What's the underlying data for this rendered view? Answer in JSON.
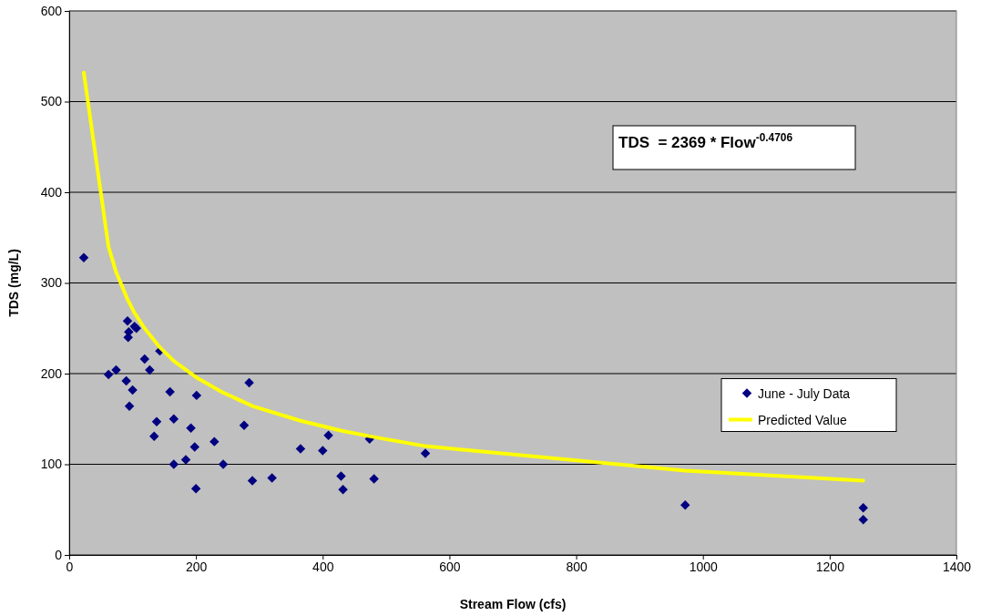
{
  "chart_data": {
    "type": "scatter",
    "xlabel": "Stream Flow (cfs)",
    "ylabel": "TDS (mg/L)",
    "xlim": [
      0,
      1400
    ],
    "xticks": [
      0,
      200,
      400,
      600,
      800,
      1000,
      1200,
      1400
    ],
    "ylim": [
      0,
      600
    ],
    "yticks": [
      0,
      100,
      200,
      300,
      400,
      500,
      600
    ],
    "grid": "y",
    "legend": "right",
    "annotations": [
      "TDS  = 2369 * Flow$^{-0.4706}$"
    ],
    "series": [
      {
        "name": "June - July Data",
        "color": "#000080",
        "marker": "diamond",
        "x": [
          23,
          92,
          103,
          106,
          94,
          93,
          62,
          74,
          90,
          100,
          95,
          119,
          127,
          143,
          159,
          201,
          284,
          138,
          165,
          192,
          134,
          198,
          229,
          276,
          165,
          184,
          243,
          200,
          289,
          320,
          365,
          400,
          409,
          474,
          562,
          429,
          432,
          481,
          972,
          1253,
          1253
        ],
        "values": [
          328,
          258,
          252,
          250,
          246,
          240,
          199,
          204,
          192,
          182,
          164,
          216,
          204,
          225,
          180,
          176,
          190,
          147,
          150,
          140,
          131,
          119,
          125,
          143,
          100,
          105,
          100,
          73,
          82,
          85,
          117,
          115,
          132,
          128,
          112,
          87,
          72,
          84,
          55,
          52,
          39
        ]
      },
      {
        "name": "Predicted Value",
        "type": "line",
        "color": "#ffff00",
        "marker": "none",
        "x": [
          23,
          62,
          74,
          92,
          103,
          119,
          143,
          165,
          200,
          243,
          290,
          365,
          430,
          481,
          562,
          972,
          1253
        ],
        "values": [
          532,
          340,
          312,
          282,
          267,
          250,
          229,
          214,
          196,
          179,
          164,
          148,
          137,
          130,
          120,
          93,
          82
        ]
      }
    ]
  }
}
